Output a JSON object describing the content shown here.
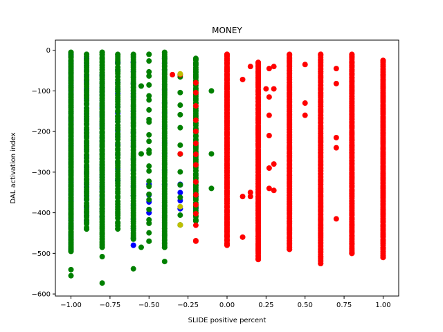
{
  "chart_data": {
    "type": "scatter",
    "title": "MONEY",
    "xlabel": "SLIDE positive percent",
    "ylabel": "DAL activation index",
    "xlim": [
      -1.1,
      1.1
    ],
    "ylim": [
      -605,
      25
    ],
    "grid": false,
    "x_ticks": [
      -1.0,
      -0.75,
      -0.5,
      -0.25,
      0.0,
      0.25,
      0.5,
      0.75,
      1.0
    ],
    "x_tick_labels": [
      "−1.00",
      "−0.75",
      "−0.50",
      "−0.25",
      "0.00",
      "0.25",
      "0.50",
      "0.75",
      "1.00"
    ],
    "y_ticks": [
      0,
      -100,
      -200,
      -300,
      -400,
      -500,
      -600
    ],
    "y_tick_labels": [
      "0",
      "−100",
      "−200",
      "−300",
      "−400",
      "−500",
      "−600"
    ],
    "colors": {
      "blue": "#0000ff",
      "green": "#008000",
      "red": "#ff0000",
      "olive": "#bfbf00"
    },
    "series": [
      {
        "color": "blue",
        "columns": [
          {
            "x": -1.0,
            "y_min": -490,
            "y_max": -10,
            "n": 70
          },
          {
            "x": -0.9,
            "y_min": -420,
            "y_max": -20,
            "n": 40
          },
          {
            "x": -0.8,
            "y_min": -410,
            "y_max": -60,
            "n": 35
          },
          {
            "x": -0.7,
            "y_min": -320,
            "y_max": -30,
            "n": 15
          },
          {
            "x": -0.6,
            "y_min": -480,
            "y_max": -30,
            "n": 20
          },
          {
            "x": -0.5,
            "y_min": -400,
            "y_max": -330,
            "n": 4
          },
          {
            "x": -0.4,
            "y_min": -330,
            "y_max": -20,
            "n": 10
          },
          {
            "x": -0.3,
            "y_min": -390,
            "y_max": -330,
            "n": 4
          },
          {
            "x": -0.2,
            "y_min": -390,
            "y_max": -360,
            "n": 2
          }
        ],
        "points": []
      },
      {
        "color": "green",
        "columns": [
          {
            "x": -1.0,
            "y_min": -495,
            "y_max": -5,
            "n": 140
          },
          {
            "x": -0.9,
            "y_min": -440,
            "y_max": -10,
            "n": 80
          },
          {
            "x": -0.8,
            "y_min": -485,
            "y_max": -5,
            "n": 130
          },
          {
            "x": -0.7,
            "y_min": -440,
            "y_max": -10,
            "n": 70
          },
          {
            "x": -0.6,
            "y_min": -465,
            "y_max": -10,
            "n": 110
          },
          {
            "x": -0.5,
            "y_min": -470,
            "y_max": -10,
            "n": 25
          },
          {
            "x": -0.4,
            "y_min": -485,
            "y_max": -5,
            "n": 120
          },
          {
            "x": -0.3,
            "y_min": -430,
            "y_max": -60,
            "n": 12
          },
          {
            "x": -0.2,
            "y_min": -420,
            "y_max": -20,
            "n": 90
          }
        ],
        "points": [
          {
            "x": -1.0,
            "y": -540
          },
          {
            "x": -1.0,
            "y": -555
          },
          {
            "x": -0.8,
            "y": -508
          },
          {
            "x": -0.8,
            "y": -573
          },
          {
            "x": -0.6,
            "y": -538
          },
          {
            "x": -0.4,
            "y": -520
          },
          {
            "x": -0.55,
            "y": -485
          },
          {
            "x": -0.55,
            "y": -88
          },
          {
            "x": -0.55,
            "y": -255
          },
          {
            "x": -0.1,
            "y": -100
          },
          {
            "x": -0.1,
            "y": -255
          },
          {
            "x": -0.1,
            "y": -340
          }
        ]
      },
      {
        "color": "red",
        "columns": [
          {
            "x": -0.2,
            "y_min": -470,
            "y_max": -80,
            "n": 14
          },
          {
            "x": 0.0,
            "y_min": -480,
            "y_max": -10,
            "n": 150
          },
          {
            "x": 0.2,
            "y_min": -515,
            "y_max": -30,
            "n": 140
          },
          {
            "x": 0.4,
            "y_min": -490,
            "y_max": -10,
            "n": 150
          },
          {
            "x": 0.6,
            "y_min": -525,
            "y_max": -10,
            "n": 140
          },
          {
            "x": 0.8,
            "y_min": -500,
            "y_max": -10,
            "n": 150
          },
          {
            "x": 1.0,
            "y_min": -510,
            "y_max": -25,
            "n": 150
          }
        ],
        "points": [
          {
            "x": -0.3,
            "y": -255
          },
          {
            "x": -0.3,
            "y": -60
          },
          {
            "x": -0.35,
            "y": -60
          },
          {
            "x": 0.1,
            "y": -72
          },
          {
            "x": 0.1,
            "y": -360
          },
          {
            "x": 0.1,
            "y": -460
          },
          {
            "x": 0.15,
            "y": -40
          },
          {
            "x": 0.15,
            "y": -350
          },
          {
            "x": 0.15,
            "y": -360
          },
          {
            "x": 0.25,
            "y": -95
          },
          {
            "x": 0.27,
            "y": -45
          },
          {
            "x": 0.27,
            "y": -115
          },
          {
            "x": 0.27,
            "y": -160
          },
          {
            "x": 0.27,
            "y": -210
          },
          {
            "x": 0.27,
            "y": -290
          },
          {
            "x": 0.27,
            "y": -340
          },
          {
            "x": 0.3,
            "y": -40
          },
          {
            "x": 0.3,
            "y": -95
          },
          {
            "x": 0.3,
            "y": -280
          },
          {
            "x": 0.3,
            "y": -345
          },
          {
            "x": 0.5,
            "y": -35
          },
          {
            "x": 0.5,
            "y": -130
          },
          {
            "x": 0.5,
            "y": -160
          },
          {
            "x": 0.7,
            "y": -45
          },
          {
            "x": 0.7,
            "y": -82
          },
          {
            "x": 0.7,
            "y": -215
          },
          {
            "x": 0.7,
            "y": -240
          },
          {
            "x": 0.7,
            "y": -415
          }
        ]
      },
      {
        "color": "olive",
        "columns": [],
        "points": [
          {
            "x": -0.3,
            "y": -58
          },
          {
            "x": -0.3,
            "y": -385
          },
          {
            "x": -0.3,
            "y": -430
          }
        ]
      }
    ]
  }
}
